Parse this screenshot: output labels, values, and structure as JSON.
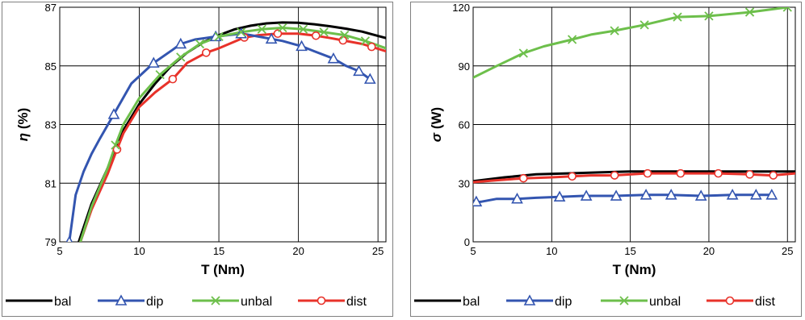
{
  "chart_data": [
    {
      "type": "line",
      "xlabel": "T (Nm)",
      "ylabel": "η (%)",
      "xlim": [
        5,
        25.5
      ],
      "ylim": [
        79,
        87
      ],
      "xticks": [
        5,
        10,
        15,
        20,
        25
      ],
      "yticks": [
        79,
        81,
        83,
        85,
        87
      ],
      "grid": true,
      "legend_position": "bottom",
      "series": [
        {
          "name": "bal",
          "color": "#000000",
          "marker": "none",
          "x": [
            6.2,
            7,
            8,
            9,
            10,
            11,
            12,
            13,
            14,
            15,
            16,
            17,
            18,
            19,
            20,
            21,
            22,
            23,
            24,
            25,
            25.5
          ],
          "y": [
            79,
            80.3,
            81.5,
            82.8,
            83.7,
            84.4,
            85.0,
            85.45,
            85.8,
            86.05,
            86.25,
            86.37,
            86.45,
            86.48,
            86.47,
            86.42,
            86.35,
            86.27,
            86.17,
            86.02,
            85.95
          ]
        },
        {
          "name": "dip",
          "color": "#3355b0",
          "marker": "triangle",
          "x": [
            5.6,
            6,
            6.5,
            7,
            7.5,
            8.4,
            9.5,
            10.9,
            12.1,
            12.6,
            13.5,
            14.8,
            16.4,
            17,
            18.3,
            19,
            20.2,
            21,
            22.2,
            23,
            23.8,
            24.5
          ],
          "y": [
            79.0,
            80.6,
            81.4,
            82.0,
            82.5,
            83.35,
            84.4,
            85.1,
            85.55,
            85.75,
            85.9,
            86.0,
            86.1,
            86.05,
            85.92,
            85.85,
            85.67,
            85.5,
            85.25,
            85.0,
            84.82,
            84.55
          ],
          "markers_x": [
            5.6,
            8.4,
            10.9,
            12.6,
            14.8,
            16.4,
            18.3,
            20.2,
            22.2,
            23.8,
            24.5
          ],
          "markers_y": [
            79.0,
            83.35,
            85.1,
            85.75,
            86.0,
            86.1,
            85.92,
            85.67,
            85.25,
            84.82,
            84.55
          ]
        },
        {
          "name": "unbal",
          "color": "#6dbf4b",
          "marker": "x",
          "x": [
            6.3,
            7,
            8,
            8.5,
            9,
            10,
            11.3,
            12.6,
            13.8,
            15,
            16.4,
            17.7,
            19,
            20.3,
            21.6,
            22.9,
            24.2,
            25.5
          ],
          "y": [
            79,
            80.2,
            81.5,
            82.3,
            83.0,
            83.9,
            84.7,
            85.3,
            85.75,
            86.0,
            86.15,
            86.25,
            86.3,
            86.25,
            86.15,
            86.05,
            85.85,
            85.6
          ],
          "markers_x": [
            8.5,
            11.3,
            12.6,
            13.8,
            15,
            16.4,
            17.7,
            19,
            20.3,
            21.6,
            22.9,
            24.2
          ],
          "markers_y": [
            82.3,
            84.7,
            85.3,
            85.75,
            86.0,
            86.15,
            86.25,
            86.3,
            86.25,
            86.15,
            86.05,
            85.85
          ]
        },
        {
          "name": "dist",
          "color": "#e8322a",
          "marker": "circle",
          "x": [
            6.3,
            7,
            8,
            8.6,
            9,
            10,
            11,
            12.1,
            13,
            14.2,
            15,
            16.6,
            17.5,
            18.7,
            20,
            21.1,
            22,
            22.8,
            24,
            24.6,
            25.5
          ],
          "y": [
            79,
            80.1,
            81.3,
            82.15,
            82.7,
            83.6,
            84.1,
            84.55,
            85.1,
            85.45,
            85.6,
            85.97,
            86.05,
            86.1,
            86.1,
            86.03,
            85.95,
            85.87,
            85.75,
            85.65,
            85.5
          ],
          "markers_x": [
            8.6,
            12.1,
            14.2,
            16.6,
            18.7,
            21.1,
            22.8,
            24.6
          ],
          "markers_y": [
            82.15,
            84.55,
            85.45,
            85.97,
            86.1,
            86.03,
            85.87,
            85.65
          ]
        }
      ]
    },
    {
      "type": "line",
      "xlabel": "T (Nm)",
      "ylabel": "σ (W)",
      "xlim": [
        5,
        25.5
      ],
      "ylim": [
        0,
        120
      ],
      "xticks": [
        5,
        10,
        15,
        20,
        25
      ],
      "yticks": [
        0,
        30,
        60,
        90,
        120
      ],
      "grid": true,
      "legend_position": "bottom",
      "series": [
        {
          "name": "bal",
          "color": "#000000",
          "marker": "none",
          "x": [
            5,
            7,
            9,
            11,
            13,
            15,
            17,
            19,
            21,
            23,
            25.5
          ],
          "y": [
            31,
            33,
            34.5,
            35,
            35.5,
            36,
            36,
            36,
            36,
            36,
            36
          ]
        },
        {
          "name": "dip",
          "color": "#3355b0",
          "marker": "triangle",
          "x": [
            5,
            5.5,
            6.5,
            7.8,
            9,
            10.5,
            12,
            14,
            16,
            17.5,
            19.5,
            21.5,
            23,
            24
          ],
          "y": [
            20,
            20.5,
            22,
            22,
            22.5,
            23,
            23.5,
            23.5,
            24,
            24,
            23.5,
            24,
            24,
            24
          ],
          "markers_x": [
            5.2,
            7.8,
            10.5,
            12.2,
            14.1,
            16,
            17.6,
            19.5,
            21.5,
            23,
            24
          ],
          "markers_y": [
            20.5,
            22,
            23,
            23.5,
            23.5,
            24,
            24,
            23.5,
            24,
            24,
            24
          ]
        },
        {
          "name": "unbal",
          "color": "#6dbf4b",
          "marker": "x",
          "x": [
            5,
            6.5,
            8.2,
            9.5,
            11.3,
            12.5,
            14,
            15.9,
            18,
            20,
            22.6,
            25,
            25.5
          ],
          "y": [
            84,
            90,
            96.5,
            100,
            103.5,
            106,
            108,
            111,
            115,
            115.5,
            117.5,
            120,
            122
          ],
          "markers_x": [
            8.2,
            11.3,
            14,
            15.9,
            18,
            20,
            22.6,
            25
          ],
          "markers_y": [
            96.5,
            103.5,
            108,
            111,
            115,
            115.5,
            117.5,
            120
          ]
        },
        {
          "name": "dist",
          "color": "#e8322a",
          "marker": "circle",
          "x": [
            5,
            6.5,
            8.2,
            10,
            11.3,
            12.5,
            14,
            16,
            18.2,
            20.5,
            22.5,
            24,
            25.5
          ],
          "y": [
            30.5,
            31.5,
            32.5,
            33,
            33.5,
            34,
            34,
            35,
            35,
            35,
            34.5,
            34,
            35
          ],
          "markers_x": [
            8.2,
            11.3,
            14,
            16.1,
            18.2,
            20.6,
            22.6,
            24.1
          ],
          "markers_y": [
            32.5,
            33.5,
            34,
            35,
            35,
            35,
            34.5,
            34
          ]
        }
      ]
    }
  ]
}
